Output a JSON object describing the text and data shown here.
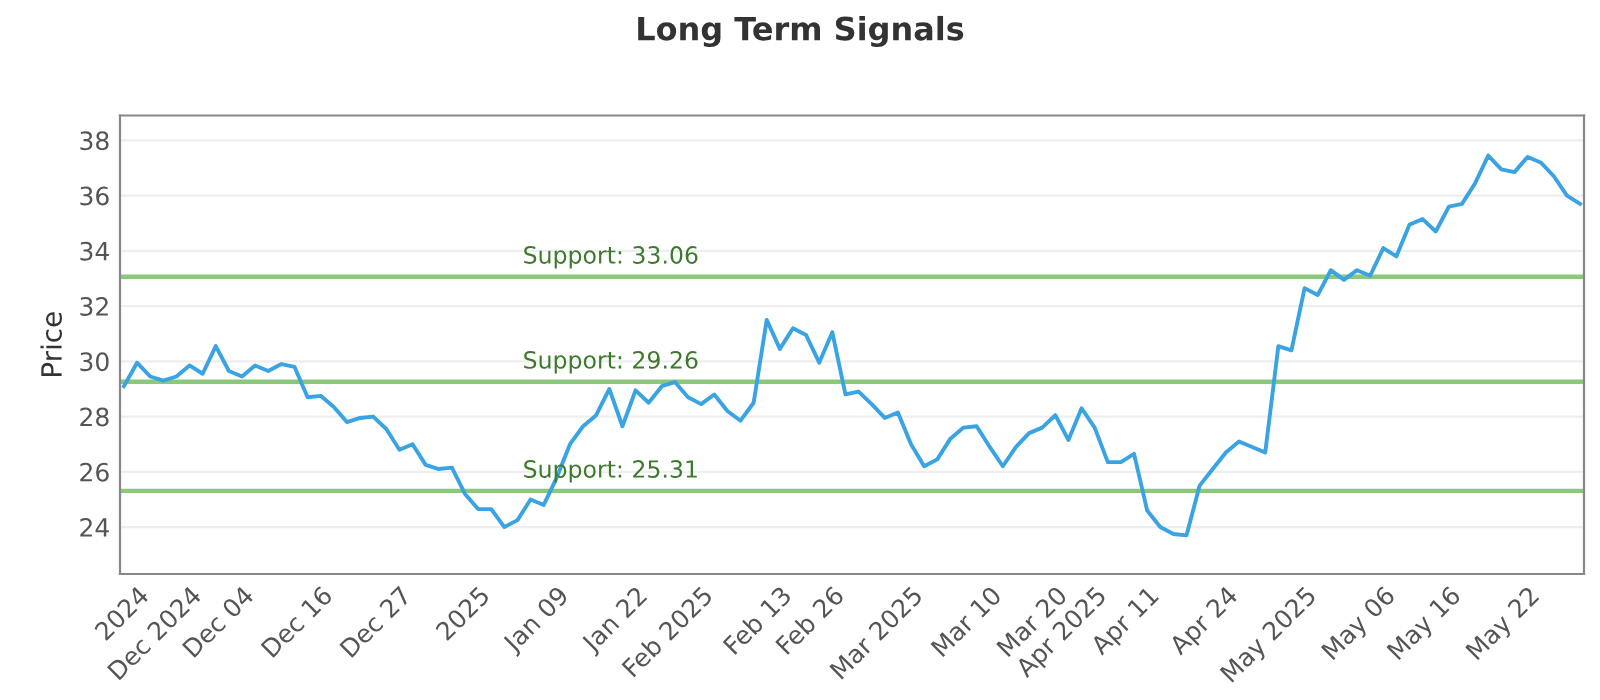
{
  "chart_data": {
    "type": "line",
    "title": "Long Term Signals",
    "ylabel": "Price",
    "categories": [
      null,
      "2024",
      null,
      null,
      null,
      "Dec 2024",
      null,
      null,
      null,
      "Dec 04",
      null,
      null,
      null,
      null,
      null,
      "Dec 16",
      null,
      null,
      null,
      null,
      null,
      "Dec 27",
      null,
      null,
      null,
      null,
      null,
      "2025",
      null,
      null,
      null,
      null,
      null,
      "Jan 09",
      null,
      null,
      null,
      null,
      null,
      "Jan 22",
      null,
      null,
      null,
      null,
      "Feb 2025",
      null,
      null,
      null,
      null,
      null,
      "Feb 13",
      null,
      null,
      null,
      "Feb 26",
      null,
      null,
      null,
      null,
      null,
      "Mar 2025",
      null,
      null,
      null,
      null,
      null,
      "Mar 10",
      null,
      null,
      null,
      null,
      "Mar 20",
      null,
      null,
      "Apr 2025",
      null,
      null,
      null,
      "Apr 11",
      null,
      null,
      null,
      null,
      null,
      "Apr 24",
      null,
      null,
      null,
      null,
      null,
      "May 2025",
      null,
      null,
      null,
      null,
      null,
      "May 06",
      null,
      null,
      null,
      null,
      "May 16",
      null,
      null,
      null,
      null,
      null,
      "May 22",
      null,
      null,
      null,
      null
    ],
    "series": [
      {
        "color": "#3aa3e3",
        "values": [
          29.1,
          29.95,
          29.45,
          29.3,
          29.45,
          29.85,
          29.55,
          30.55,
          29.65,
          29.45,
          29.85,
          29.65,
          29.9,
          29.8,
          28.7,
          28.75,
          28.35,
          27.8,
          27.95,
          28.0,
          27.55,
          26.8,
          27.0,
          26.25,
          26.1,
          26.15,
          25.2,
          24.65,
          24.65,
          24.0,
          24.25,
          25.0,
          24.8,
          25.8,
          27.0,
          27.65,
          28.05,
          29.0,
          27.65,
          28.95,
          28.5,
          29.1,
          29.25,
          28.7,
          28.45,
          28.8,
          28.2,
          27.85,
          28.5,
          31.5,
          30.45,
          31.2,
          30.95,
          29.95,
          31.05,
          28.8,
          28.9,
          28.45,
          27.95,
          28.15,
          27.0,
          26.2,
          26.45,
          27.2,
          27.6,
          27.65,
          26.9,
          26.2,
          26.9,
          27.4,
          27.6,
          28.05,
          27.15,
          28.3,
          27.6,
          26.35,
          26.35,
          26.65,
          24.6,
          24.0,
          23.75,
          23.7,
          25.5,
          26.1,
          26.7,
          27.1,
          26.9,
          26.7,
          30.55,
          30.4,
          32.65,
          32.4,
          33.3,
          32.95,
          33.3,
          33.1,
          34.1,
          33.8,
          34.95,
          35.15,
          34.7,
          35.6,
          35.7,
          36.45,
          37.45,
          36.95,
          36.85,
          37.4,
          37.2,
          36.7,
          36.0,
          35.7
        ]
      }
    ],
    "ylim": [
      22.3,
      38.9
    ],
    "yticks": [
      24,
      26,
      28,
      30,
      32,
      34,
      36,
      38
    ],
    "grid": "y",
    "marker": "none",
    "line_style": "solid",
    "ref_lines": [
      {
        "axis": "y",
        "value": 33.06,
        "label": "Support: 33.06",
        "color": "#8cc87a"
      },
      {
        "axis": "y",
        "value": 29.26,
        "label": "Support: 29.26",
        "color": "#8cc87a"
      },
      {
        "axis": "y",
        "value": 25.31,
        "label": "Support: 25.31",
        "color": "#8cc87a"
      }
    ]
  }
}
